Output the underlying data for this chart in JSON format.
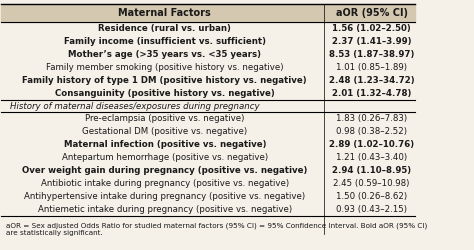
{
  "title": "Maternal Factors",
  "col2_header": "aOR (95% CI)",
  "section1_rows": [
    {
      "factor": "Residence (rural vs. urban)",
      "value": "1.56 (1.02–2.50)",
      "bold": true
    },
    {
      "factor": "Family income (insufficient vs. sufficient)",
      "value": "2.37 (1.41–3.99)",
      "bold": true
    },
    {
      "factor": "Mother’s age (>35 years vs. <35 years)",
      "value": "8.53 (1.87–38.97)",
      "bold": true
    },
    {
      "factor": "Family member smoking (positive history vs. negative)",
      "value": "1.01 (0.85–1.89)",
      "bold": false
    },
    {
      "factor": "Family history of type 1 DM (positive history vs. negative)",
      "value": "2.48 (1.23–34.72)",
      "bold": true
    },
    {
      "factor": "Consanguinity (positive history vs. negative)",
      "value": "2.01 (1.32–4.78)",
      "bold": true
    }
  ],
  "section2_header": "History of maternal diseases/exposures during pregnancy",
  "section2_rows": [
    {
      "factor": "Pre-eclampsia (positive vs. negative)",
      "value": "1.83 (0.26–7.83)",
      "bold": false
    },
    {
      "factor": "Gestational DM (positive vs. negative)",
      "value": "0.98 (0.38–2.52)",
      "bold": false
    },
    {
      "factor": "Maternal infection (positive vs. negative)",
      "value": "2.89 (1.02–10.76)",
      "bold": true
    },
    {
      "factor": "Antepartum hemorrhage (positive vs. negative)",
      "value": "1.21 (0.43–3.40)",
      "bold": false
    },
    {
      "factor": "Over weight gain during pregnancy (positive vs. negative)",
      "value": "2.94 (1.10–8.95)",
      "bold": true
    },
    {
      "factor": "Antibiotic intake during pregnancy (positive vs. negative)",
      "value": "2.45 (0.59–10.98)",
      "bold": false
    },
    {
      "factor": "Antihypertensive intake during pregnancy (positive vs. negative)",
      "value": "1.50 (0.26–8.62)",
      "bold": false
    },
    {
      "factor": "Antiemetic intake during pregnancy (positive vs. negative)",
      "value": "0.93 (0.43–2.15)",
      "bold": false
    }
  ],
  "footnote": "aOR = Sex adjusted Odds Ratio for studied maternal factors (95% CI) = 95% Confidence Interval. Bold aOR (95% CI)\nare statistically significant.",
  "bg_color": "#f5f0e8",
  "header_bg": "#d4c8b0",
  "text_color": "#1a1a1a",
  "font_size": 6.2,
  "header_font_size": 7.0,
  "footnote_font_size": 5.2
}
